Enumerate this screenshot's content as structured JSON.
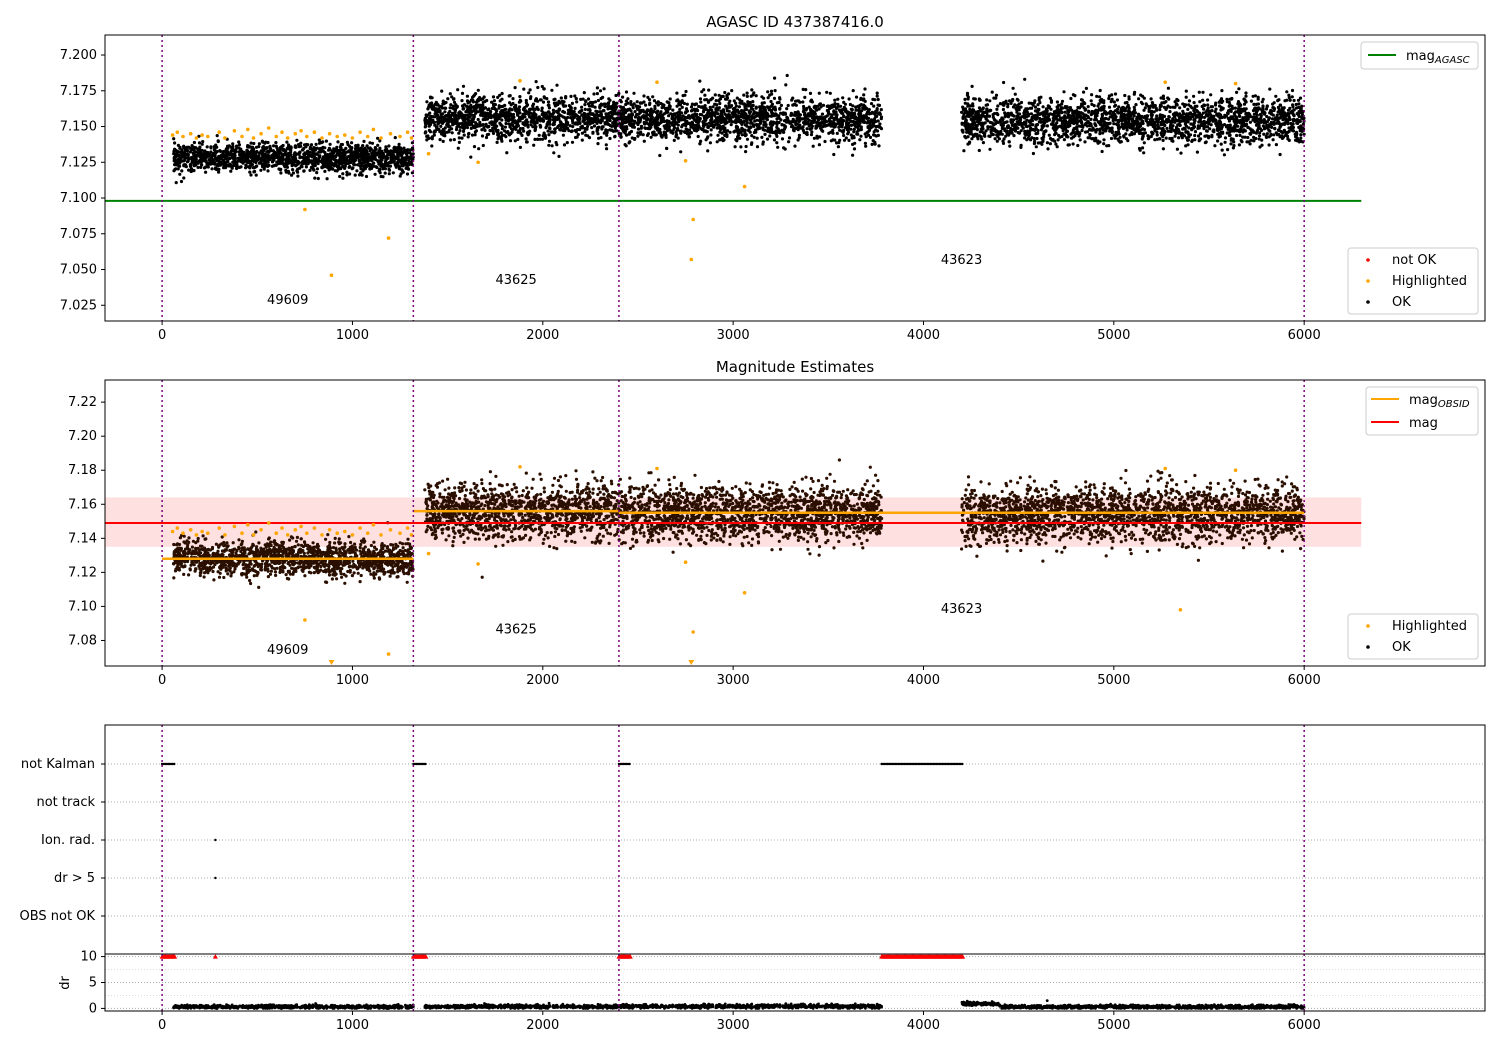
{
  "chart_data": [
    {
      "type": "scatter",
      "title": "AGASC ID 437387416.0",
      "xlim": [
        -300,
        6950
      ],
      "ylim": [
        7.014,
        7.214
      ],
      "x_ticks": [
        0,
        1000,
        2000,
        3000,
        4000,
        5000,
        6000
      ],
      "y_ticks": [
        7.025,
        7.05,
        7.075,
        7.1,
        7.125,
        7.15,
        7.175,
        7.2
      ],
      "grid": false,
      "legend_upper": {
        "position": "top-right",
        "entries": [
          {
            "label": "mag",
            "subscript": "AGASC",
            "color": "#008000",
            "kind": "line"
          }
        ]
      },
      "legend_lower": {
        "position": "bottom-right",
        "entries": [
          {
            "label": "not OK",
            "color": "#ff0000",
            "kind": "marker"
          },
          {
            "label": "Highlighted",
            "color": "#ffa500",
            "kind": "marker"
          },
          {
            "label": "OK",
            "color": "#000000",
            "kind": "marker"
          }
        ]
      },
      "reference_lines": [
        {
          "name": "mag AGASC",
          "y": 7.098,
          "x_range": [
            -300,
            6300
          ],
          "color": "#008000"
        }
      ],
      "obsid_boundaries": [
        0,
        1320,
        2400,
        6000
      ],
      "obsid_labels": [
        {
          "text": "49609",
          "x": 660,
          "y": 7.026
        },
        {
          "text": "43625",
          "x": 1860,
          "y": 7.04
        },
        {
          "text": "43623",
          "x": 4200,
          "y": 7.054
        }
      ],
      "segments": [
        {
          "obsid": "49609",
          "x_range": [
            60,
            1320
          ],
          "center": 7.128,
          "spread": 0.0055
        },
        {
          "obsid": "43625",
          "x_range": [
            1380,
            2400
          ],
          "center": 7.156,
          "spread": 0.009
        },
        {
          "obsid": "43625",
          "x_range": [
            2400,
            3780
          ],
          "center": 7.155,
          "spread": 0.009
        },
        {
          "obsid": "43623",
          "x_range": [
            4200,
            6000
          ],
          "center": 7.154,
          "spread": 0.009
        }
      ],
      "highlighted_points": [
        [
          55,
          7.144
        ],
        [
          80,
          7.146
        ],
        [
          110,
          7.143
        ],
        [
          150,
          7.145
        ],
        [
          180,
          7.142
        ],
        [
          210,
          7.144
        ],
        [
          240,
          7.143
        ],
        [
          300,
          7.146
        ],
        [
          330,
          7.142
        ],
        [
          380,
          7.147
        ],
        [
          420,
          7.143
        ],
        [
          450,
          7.148
        ],
        [
          480,
          7.142
        ],
        [
          520,
          7.145
        ],
        [
          560,
          7.149
        ],
        [
          600,
          7.143
        ],
        [
          630,
          7.146
        ],
        [
          660,
          7.142
        ],
        [
          700,
          7.145
        ],
        [
          730,
          7.147
        ],
        [
          760,
          7.143
        ],
        [
          800,
          7.146
        ],
        [
          840,
          7.142
        ],
        [
          880,
          7.145
        ],
        [
          920,
          7.143
        ],
        [
          960,
          7.144
        ],
        [
          1000,
          7.142
        ],
        [
          1040,
          7.146
        ],
        [
          1080,
          7.143
        ],
        [
          1110,
          7.148
        ],
        [
          1150,
          7.142
        ],
        [
          1200,
          7.145
        ],
        [
          1250,
          7.143
        ],
        [
          1290,
          7.146
        ],
        [
          1310,
          7.142
        ],
        [
          750,
          7.092
        ],
        [
          890,
          7.046
        ],
        [
          1190,
          7.072
        ],
        [
          1400,
          7.131
        ],
        [
          1660,
          7.125
        ],
        [
          1880,
          7.182
        ],
        [
          2600,
          7.181
        ],
        [
          2750,
          7.126
        ],
        [
          2790,
          7.085
        ],
        [
          2780,
          7.057
        ],
        [
          3060,
          7.108
        ],
        [
          5270,
          7.181
        ],
        [
          5640,
          7.18
        ]
      ],
      "ok_points_note": "OK points drawn as dense scatter around each segment center",
      "not_ok_points": []
    },
    {
      "type": "scatter",
      "title": "Magnitude Estimates",
      "xlim": [
        -300,
        6950
      ],
      "ylim": [
        7.065,
        7.233
      ],
      "x_ticks": [
        0,
        1000,
        2000,
        3000,
        4000,
        5000,
        6000
      ],
      "y_ticks": [
        7.08,
        7.1,
        7.12,
        7.14,
        7.16,
        7.18,
        7.2,
        7.22
      ],
      "grid": false,
      "legend_upper": {
        "position": "top-right",
        "entries": [
          {
            "label": "mag",
            "subscript": "OBSID",
            "color": "#ffa500",
            "kind": "line"
          },
          {
            "label": "mag",
            "subscript": "",
            "color": "#ff0000",
            "kind": "line"
          }
        ]
      },
      "legend_lower": {
        "position": "bottom-right",
        "entries": [
          {
            "label": "Highlighted",
            "color": "#ffa500",
            "kind": "marker"
          },
          {
            "label": "OK",
            "color": "#000000",
            "kind": "marker"
          }
        ]
      },
      "mag": {
        "value": 7.149,
        "band": [
          7.135,
          7.164
        ],
        "x_range": [
          -300,
          6300
        ],
        "color": "#ff0000"
      },
      "mag_obsid": [
        {
          "x_range": [
            0,
            1320
          ],
          "value": 7.128
        },
        {
          "x_range": [
            1320,
            2400
          ],
          "value": 7.156
        },
        {
          "x_range": [
            2400,
            6000
          ],
          "value": 7.155
        }
      ],
      "obsid_boundaries": [
        0,
        1320,
        2400,
        6000
      ],
      "obsid_labels": [
        {
          "text": "49609",
          "x": 660,
          "y": 7.072
        },
        {
          "text": "43625",
          "x": 1860,
          "y": 7.084
        },
        {
          "text": "43623",
          "x": 4200,
          "y": 7.096
        }
      ],
      "segments": [
        {
          "obsid": "49609",
          "x_range": [
            60,
            1320
          ],
          "center": 7.128,
          "spread": 0.0055
        },
        {
          "obsid": "43625",
          "x_range": [
            1380,
            2400
          ],
          "center": 7.156,
          "spread": 0.009
        },
        {
          "obsid": "43625",
          "x_range": [
            2400,
            3780
          ],
          "center": 7.155,
          "spread": 0.009
        },
        {
          "obsid": "43623",
          "x_range": [
            4200,
            6000
          ],
          "center": 7.154,
          "spread": 0.009
        }
      ],
      "highlighted_points": [
        [
          55,
          7.144
        ],
        [
          80,
          7.146
        ],
        [
          110,
          7.143
        ],
        [
          150,
          7.145
        ],
        [
          180,
          7.142
        ],
        [
          210,
          7.144
        ],
        [
          240,
          7.143
        ],
        [
          300,
          7.146
        ],
        [
          330,
          7.142
        ],
        [
          380,
          7.147
        ],
        [
          420,
          7.143
        ],
        [
          450,
          7.148
        ],
        [
          480,
          7.142
        ],
        [
          520,
          7.145
        ],
        [
          560,
          7.149
        ],
        [
          600,
          7.143
        ],
        [
          630,
          7.146
        ],
        [
          660,
          7.142
        ],
        [
          700,
          7.145
        ],
        [
          730,
          7.147
        ],
        [
          760,
          7.143
        ],
        [
          800,
          7.146
        ],
        [
          840,
          7.142
        ],
        [
          880,
          7.145
        ],
        [
          920,
          7.143
        ],
        [
          960,
          7.144
        ],
        [
          1000,
          7.142
        ],
        [
          1040,
          7.146
        ],
        [
          1080,
          7.143
        ],
        [
          1110,
          7.148
        ],
        [
          1150,
          7.142
        ],
        [
          1200,
          7.145
        ],
        [
          1250,
          7.143
        ],
        [
          1290,
          7.146
        ],
        [
          1310,
          7.142
        ],
        [
          750,
          7.092
        ],
        [
          1190,
          7.072
        ],
        [
          1400,
          7.131
        ],
        [
          1660,
          7.125
        ],
        [
          1880,
          7.182
        ],
        [
          2600,
          7.181
        ],
        [
          2750,
          7.126
        ],
        [
          2790,
          7.085
        ],
        [
          3060,
          7.108
        ],
        [
          5270,
          7.181
        ],
        [
          5350,
          7.098
        ],
        [
          5640,
          7.18
        ]
      ],
      "offscale_markers": [
        {
          "x": 890
        },
        {
          "x": 2780
        }
      ]
    },
    {
      "type": "scatter",
      "title": "",
      "xlim": [
        -300,
        6950
      ],
      "x_ticks": [
        0,
        1000,
        2000,
        3000,
        4000,
        5000,
        6000
      ],
      "flag_rows": [
        "not Kalman",
        "not track",
        "Ion. rad.",
        "dr > 5",
        "OBS not OK"
      ],
      "flags": {
        "not Kalman": [
          [
            0,
            70
          ],
          [
            1320,
            1390
          ],
          [
            2400,
            2460
          ],
          [
            3780,
            4210
          ]
        ],
        "not track": [],
        "Ion. rad.": [
          [
            280,
            280
          ]
        ],
        "dr > 5": [
          [
            280,
            280
          ]
        ],
        "OBS not OK": []
      },
      "obsid_boundaries": [
        0,
        1320,
        2400,
        6000
      ]
    },
    {
      "type": "scatter",
      "title": "",
      "ylabel": "dr",
      "xlim": [
        -300,
        6950
      ],
      "ylim": [
        -0.5,
        10.5
      ],
      "x_ticks": [
        0,
        1000,
        2000,
        3000,
        4000,
        5000,
        6000
      ],
      "y_ticks": [
        0,
        5,
        10
      ],
      "grid": true,
      "capped_value": 10,
      "capped_ranges": [
        [
          0,
          70
        ],
        [
          280,
          280
        ],
        [
          1320,
          1390
        ],
        [
          2400,
          2460
        ],
        [
          3780,
          4210
        ]
      ],
      "dr_segments": [
        {
          "x_range": [
            60,
            1320
          ],
          "center": 0.3
        },
        {
          "x_range": [
            1380,
            2400
          ],
          "center": 0.35
        },
        {
          "x_range": [
            2400,
            3780
          ],
          "center": 0.4
        },
        {
          "x_range": [
            4200,
            4400
          ],
          "center": 0.9
        },
        {
          "x_range": [
            4400,
            6000
          ],
          "center": 0.3
        }
      ],
      "obsid_boundaries": [
        0,
        1320,
        2400,
        6000
      ]
    }
  ]
}
